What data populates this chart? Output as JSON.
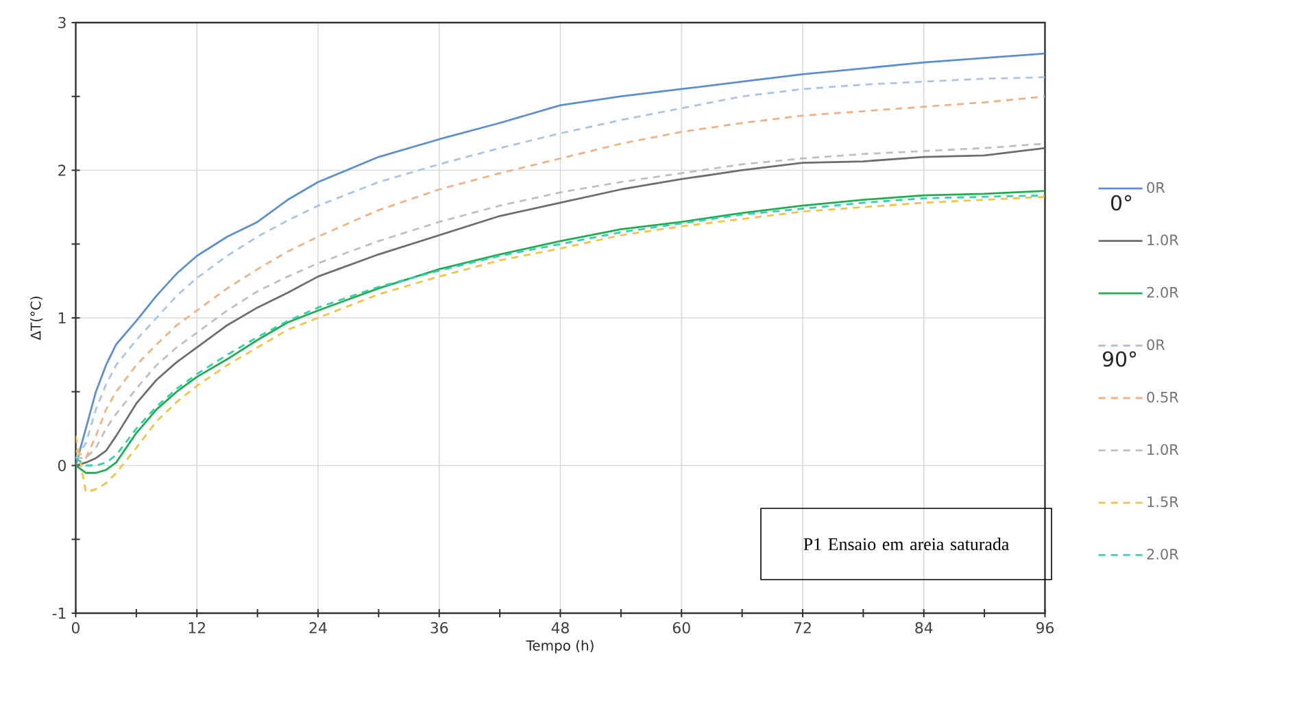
{
  "chart_data": {
    "type": "line",
    "xlabel": "Tempo (h)",
    "ylabel": "ΔT(°C)",
    "annotations": [
      "0°",
      "90°",
      "P1 Ensaio em areia saturada"
    ],
    "x": [
      0,
      1,
      2,
      3,
      4,
      6,
      8,
      10,
      12,
      15,
      18,
      21,
      24,
      30,
      36,
      42,
      48,
      54,
      60,
      66,
      72,
      78,
      84,
      90,
      96
    ],
    "xlim": [
      0,
      96
    ],
    "xticks": [
      0,
      {
        "value": 6,
        "label": null
      },
      12,
      {
        "value": 18,
        "label": null
      },
      24,
      {
        "value": 30,
        "label": null
      },
      36,
      {
        "value": 42,
        "label": null
      },
      48,
      {
        "value": 54,
        "label": null
      },
      60,
      {
        "value": 66,
        "label": null
      },
      72,
      {
        "value": 78,
        "label": null
      },
      84,
      {
        "value": 90,
        "label": null
      },
      96
    ],
    "ylim": [
      -1,
      3
    ],
    "yticks": [
      -1,
      {
        "value": -0.5,
        "label": null
      },
      0,
      {
        "value": 0.5,
        "label": null
      },
      1,
      {
        "value": 1.5,
        "label": null
      },
      2,
      {
        "value": 2.5,
        "label": null
      },
      3
    ],
    "grid": true,
    "legend": "right",
    "marker": "none",
    "series": [
      {
        "name": "0R",
        "color": "#5b8fd0",
        "line_style": "solid",
        "values": [
          0,
          0.25,
          0.5,
          0.68,
          0.82,
          0.98,
          1.15,
          1.3,
          1.42,
          1.55,
          1.65,
          1.8,
          1.92,
          2.09,
          2.21,
          2.32,
          2.44,
          2.5,
          2.55,
          2.6,
          2.65,
          2.69,
          2.73,
          2.76,
          2.79
        ]
      },
      {
        "name": "1.0R",
        "color": "#6d6d6d",
        "line_style": "solid",
        "values": [
          0,
          0.02,
          0.05,
          0.1,
          0.2,
          0.42,
          0.58,
          0.7,
          0.8,
          0.95,
          1.07,
          1.17,
          1.28,
          1.43,
          1.56,
          1.69,
          1.78,
          1.87,
          1.94,
          2.0,
          2.05,
          2.06,
          2.09,
          2.1,
          2.15
        ]
      },
      {
        "name": "2.0R",
        "color": "#1fae4f",
        "line_style": "solid",
        "values": [
          0,
          -0.05,
          -0.05,
          -0.03,
          0.02,
          0.22,
          0.38,
          0.5,
          0.6,
          0.72,
          0.85,
          0.97,
          1.05,
          1.2,
          1.33,
          1.43,
          1.52,
          1.6,
          1.65,
          1.71,
          1.76,
          1.8,
          1.83,
          1.84,
          1.86
        ]
      },
      {
        "name": "0R",
        "color": "#a9c4ea",
        "line_style": "dashed",
        "values": [
          0.05,
          0.15,
          0.38,
          0.55,
          0.68,
          0.85,
          1.0,
          1.15,
          1.27,
          1.42,
          1.55,
          1.66,
          1.76,
          1.92,
          2.04,
          2.15,
          2.25,
          2.34,
          2.42,
          2.5,
          2.55,
          2.58,
          2.6,
          2.62,
          2.63
        ]
      },
      {
        "name": "0.5R",
        "color": "#f2b183",
        "line_style": "dashed",
        "values": [
          0.1,
          0.05,
          0.2,
          0.38,
          0.5,
          0.68,
          0.82,
          0.95,
          1.05,
          1.2,
          1.33,
          1.45,
          1.55,
          1.73,
          1.87,
          1.98,
          2.08,
          2.18,
          2.26,
          2.32,
          2.37,
          2.4,
          2.43,
          2.46,
          2.5
        ]
      },
      {
        "name": "1.0R",
        "color": "#bfbfbf",
        "line_style": "dashed",
        "values": [
          0.05,
          0.05,
          0.12,
          0.25,
          0.35,
          0.52,
          0.68,
          0.8,
          0.9,
          1.05,
          1.18,
          1.28,
          1.37,
          1.52,
          1.65,
          1.76,
          1.85,
          1.92,
          1.98,
          2.04,
          2.08,
          2.11,
          2.13,
          2.15,
          2.18
        ]
      },
      {
        "name": "1.5R",
        "color": "#f5c242",
        "line_style": "dashed",
        "values": [
          0.2,
          -0.18,
          -0.16,
          -0.12,
          -0.05,
          0.12,
          0.3,
          0.43,
          0.54,
          0.68,
          0.8,
          0.92,
          1.0,
          1.16,
          1.28,
          1.39,
          1.47,
          1.56,
          1.62,
          1.67,
          1.72,
          1.75,
          1.78,
          1.8,
          1.82
        ]
      },
      {
        "name": "2.0R",
        "color": "#33d1b0",
        "line_style": "dashed",
        "values": [
          0.05,
          0.0,
          0.0,
          0.02,
          0.07,
          0.25,
          0.4,
          0.52,
          0.62,
          0.75,
          0.87,
          0.98,
          1.07,
          1.21,
          1.32,
          1.42,
          1.5,
          1.58,
          1.64,
          1.7,
          1.74,
          1.78,
          1.81,
          1.82,
          1.83
        ]
      }
    ]
  }
}
